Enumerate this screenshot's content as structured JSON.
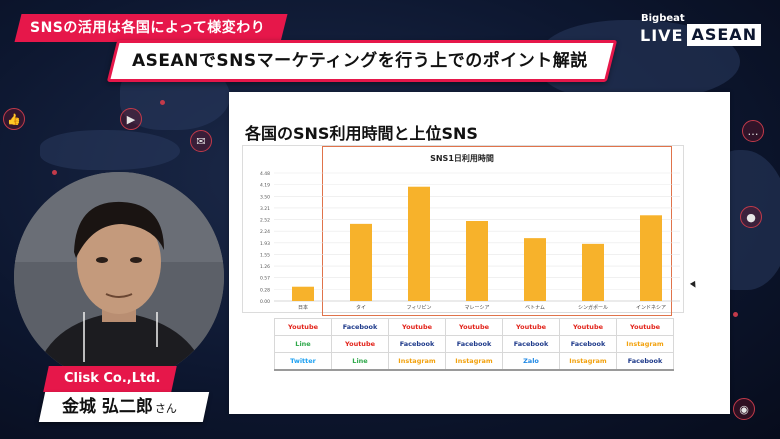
{
  "banner": {
    "subtitle": "SNSの活用は各国によって様変わり",
    "title": "ASEANでSNSマーケティングを行う上でのポイント解説"
  },
  "logo": {
    "brand_small": "Bigbeat",
    "brand_live": "LIVE",
    "brand_asean": "ASEAN"
  },
  "slide": {
    "title": "各国のSNS利用時間と上位SNS"
  },
  "chart_data": {
    "type": "bar",
    "title": "SNS1日利用時間",
    "categories": [
      "日本",
      "タイ",
      "フィリピン",
      "マレーシア",
      "ベトナム",
      "シンガポール",
      "インドネシア"
    ],
    "values": [
      0.5,
      2.7,
      4.0,
      2.8,
      2.2,
      2.0,
      3.0
    ],
    "ytick_labels": [
      "0.00",
      "0.28",
      "0.57",
      "1.26",
      "1.55",
      "1.93",
      "2.24",
      "2.52",
      "3.21",
      "3.50",
      "4.19",
      "4.48"
    ],
    "ylim": [
      0,
      4.48
    ],
    "bar_color": "#f7b22b",
    "grid": true,
    "xlabel": "",
    "ylabel": ""
  },
  "sns_table": {
    "rows": [
      [
        "Youtube",
        "Facebook",
        "Youtube",
        "Youtube",
        "Youtube",
        "Youtube",
        "Youtube"
      ],
      [
        "Line",
        "Youtube",
        "Facebook",
        "Facebook",
        "Facebook",
        "Facebook",
        "Instagram"
      ],
      [
        "Twitter",
        "Line",
        "Instagram",
        "Instagram",
        "Zalo",
        "Instagram",
        "Facebook"
      ]
    ],
    "colors": {
      "Youtube": "#e2231a",
      "Facebook": "#1e3a8a",
      "Line": "#2ea84a",
      "Instagram": "#f2a20f",
      "Twitter": "#1da1f2",
      "Zalo": "#1e88e5"
    }
  },
  "presenter": {
    "company": "Clisk Co.,Ltd.",
    "name": "金城 弘二郎",
    "honorific": "さん"
  },
  "background_icons": [
    "like-icon",
    "message-icon",
    "megaphone-icon",
    "camera-icon",
    "location-icon",
    "chat-icon"
  ]
}
